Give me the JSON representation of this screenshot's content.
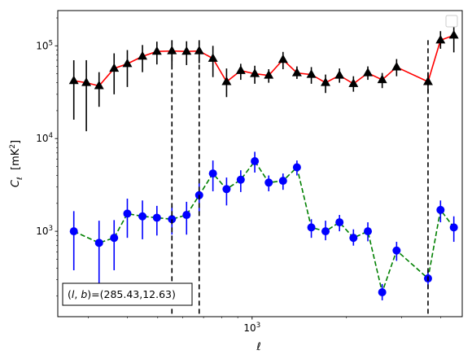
{
  "chart_data": {
    "type": "line",
    "xlabel": "ℓ",
    "ylabel": "C_ℓ [mK²]",
    "ylabel_parts": {
      "main": "C",
      "sub": "ℓ",
      "unit_pre": "[mK",
      "unit_sup": "2",
      "unit_post": "]"
    },
    "x_scale": "log",
    "y_scale": "log",
    "xlim": [
      240,
      4680
    ],
    "ylim": [
      120,
      240000
    ],
    "x_tick_labels": [
      {
        "value": 1000,
        "base": "10",
        "exp": "3"
      }
    ],
    "y_tick_labels": [
      {
        "value": 1000,
        "base": "10",
        "exp": "3"
      },
      {
        "value": 10000,
        "base": "10",
        "exp": "4"
      },
      {
        "value": 100000,
        "base": "10",
        "exp": "5"
      }
    ],
    "vlines": [
      555,
      678,
      3640
    ],
    "annotation": "(l, b)=(285.43,12.63)",
    "annotation_parts": {
      "l": "l",
      "b": "b",
      "rest": "=(285.43,12.63)"
    },
    "legend": "top-right (empty)",
    "series": [
      {
        "marker": "triangle",
        "line_color": "#ff0000",
        "marker_color": "#000000",
        "errorbar_color": "#000000",
        "line_style": "solid",
        "points": [
          {
            "x": 270,
            "y": 42000,
            "lo": 16000,
            "hi": 70000
          },
          {
            "x": 296,
            "y": 40000,
            "lo": 12000,
            "hi": 70000
          },
          {
            "x": 325,
            "y": 37000,
            "lo": 22000,
            "hi": 52000
          },
          {
            "x": 363,
            "y": 57000,
            "lo": 30000,
            "hi": 83000
          },
          {
            "x": 400,
            "y": 64000,
            "lo": 36000,
            "hi": 90000
          },
          {
            "x": 447,
            "y": 77000,
            "lo": 52000,
            "hi": 102000
          },
          {
            "x": 497,
            "y": 87000,
            "lo": 63000,
            "hi": 111000
          },
          {
            "x": 555,
            "y": 88000,
            "lo": 62000,
            "hi": 114000
          },
          {
            "x": 618,
            "y": 87000,
            "lo": 62000,
            "hi": 112000
          },
          {
            "x": 678,
            "y": 88000,
            "lo": 65000,
            "hi": 112000
          },
          {
            "x": 750,
            "y": 73000,
            "lo": 46000,
            "hi": 100000
          },
          {
            "x": 829,
            "y": 41000,
            "lo": 28000,
            "hi": 57000
          },
          {
            "x": 920,
            "y": 54000,
            "lo": 43000,
            "hi": 64000
          },
          {
            "x": 1020,
            "y": 50000,
            "lo": 39000,
            "hi": 61000
          },
          {
            "x": 1130,
            "y": 48000,
            "lo": 40000,
            "hi": 56000
          },
          {
            "x": 1255,
            "y": 71000,
            "lo": 56000,
            "hi": 86000
          },
          {
            "x": 1390,
            "y": 51000,
            "lo": 44000,
            "hi": 60000
          },
          {
            "x": 1545,
            "y": 49000,
            "lo": 39000,
            "hi": 59000
          },
          {
            "x": 1715,
            "y": 40000,
            "lo": 31000,
            "hi": 49000
          },
          {
            "x": 1900,
            "y": 48000,
            "lo": 40000,
            "hi": 57000
          },
          {
            "x": 2105,
            "y": 39000,
            "lo": 32000,
            "hi": 47000
          },
          {
            "x": 2340,
            "y": 51000,
            "lo": 43000,
            "hi": 60000
          },
          {
            "x": 2600,
            "y": 43000,
            "lo": 35000,
            "hi": 51000
          },
          {
            "x": 2890,
            "y": 59000,
            "lo": 47000,
            "hi": 72000
          },
          {
            "x": 3640,
            "y": 41000,
            "lo": 31000,
            "hi": 52000
          },
          {
            "x": 3990,
            "y": 115000,
            "lo": 93000,
            "hi": 144000
          },
          {
            "x": 4400,
            "y": 130000,
            "lo": 85000,
            "hi": 165000
          }
        ]
      },
      {
        "marker": "circle",
        "line_color": "#008000",
        "marker_color": "#0000ff",
        "errorbar_color": "#0000ff",
        "line_style": "dashed",
        "points": [
          {
            "x": 270,
            "y": 1000,
            "lo": 380,
            "hi": 1650
          },
          {
            "x": 325,
            "y": 750,
            "lo": 230,
            "hi": 1300
          },
          {
            "x": 363,
            "y": 850,
            "lo": 380,
            "hi": 1320
          },
          {
            "x": 400,
            "y": 1550,
            "lo": 850,
            "hi": 2250
          },
          {
            "x": 447,
            "y": 1450,
            "lo": 820,
            "hi": 2150
          },
          {
            "x": 497,
            "y": 1400,
            "lo": 900,
            "hi": 1880
          },
          {
            "x": 555,
            "y": 1350,
            "lo": 920,
            "hi": 1880
          },
          {
            "x": 618,
            "y": 1500,
            "lo": 920,
            "hi": 2080
          },
          {
            "x": 678,
            "y": 2450,
            "lo": 1600,
            "hi": 3300
          },
          {
            "x": 750,
            "y": 4200,
            "lo": 2700,
            "hi": 5800
          },
          {
            "x": 829,
            "y": 2850,
            "lo": 1900,
            "hi": 3800
          },
          {
            "x": 920,
            "y": 3600,
            "lo": 2650,
            "hi": 4550
          },
          {
            "x": 1020,
            "y": 5700,
            "lo": 4300,
            "hi": 7200
          },
          {
            "x": 1130,
            "y": 3350,
            "lo": 2700,
            "hi": 4000
          },
          {
            "x": 1255,
            "y": 3500,
            "lo": 2800,
            "hi": 4200
          },
          {
            "x": 1390,
            "y": 4900,
            "lo": 4000,
            "hi": 5800
          },
          {
            "x": 1545,
            "y": 1100,
            "lo": 850,
            "hi": 1350
          },
          {
            "x": 1715,
            "y": 1000,
            "lo": 800,
            "hi": 1300
          },
          {
            "x": 1900,
            "y": 1250,
            "lo": 1000,
            "hi": 1500
          },
          {
            "x": 2105,
            "y": 850,
            "lo": 700,
            "hi": 1050
          },
          {
            "x": 2340,
            "y": 1000,
            "lo": 780,
            "hi": 1250
          },
          {
            "x": 2600,
            "y": 220,
            "lo": 180,
            "hi": 270
          },
          {
            "x": 2890,
            "y": 620,
            "lo": 480,
            "hi": 770
          },
          {
            "x": 3640,
            "y": 310,
            "lo": 240,
            "hi": 380
          },
          {
            "x": 3990,
            "y": 1700,
            "lo": 1250,
            "hi": 2150
          },
          {
            "x": 4400,
            "y": 1100,
            "lo": 770,
            "hi": 1450
          }
        ]
      }
    ]
  }
}
